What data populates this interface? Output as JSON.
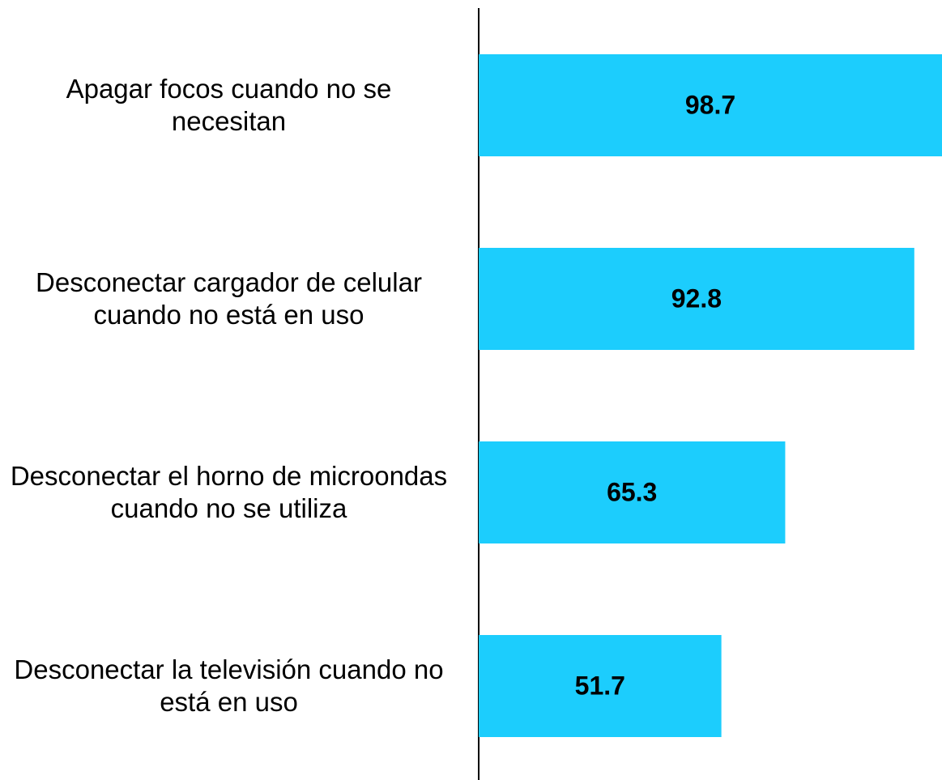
{
  "chart_data": {
    "type": "barh",
    "categories": [
      "Apagar focos cuando no se necesitan",
      "Desconectar cargador de celular cuando no está en uso",
      "Desconectar el horno de microondas cuando no se utiliza",
      "Desconectar la televisión cuando no está en uso"
    ],
    "values": [
      98.7,
      92.8,
      65.3,
      51.7
    ],
    "color": "#1ccdfd"
  }
}
